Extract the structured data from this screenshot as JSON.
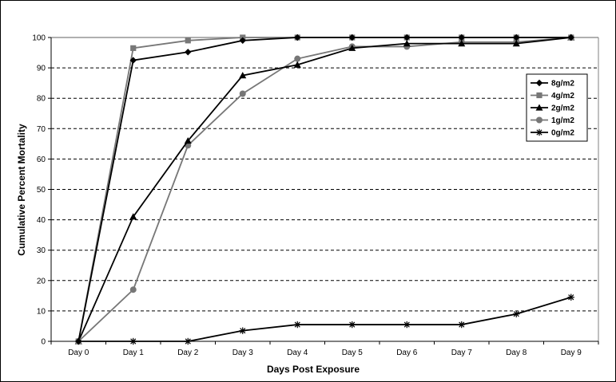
{
  "chart_data": {
    "type": "line",
    "title": "",
    "xlabel": "Days Post Exposure",
    "ylabel": "Cumulative Percent Mortality",
    "categories": [
      "Day 0",
      "Day 1",
      "Day 2",
      "Day 3",
      "Day 4",
      "Day 5",
      "Day 6",
      "Day 7",
      "Day 8",
      "Day 9"
    ],
    "ylim": [
      0,
      100
    ],
    "yticks": [
      0,
      10,
      20,
      30,
      40,
      50,
      60,
      70,
      80,
      90,
      100
    ],
    "grid": "horizontal dashed",
    "legend_position": "right",
    "series": [
      {
        "name": "8g/m2",
        "marker": "diamond",
        "color": "#000000",
        "values": [
          0,
          92.5,
          95.2,
          99,
          100,
          100,
          100,
          100,
          100,
          100
        ]
      },
      {
        "name": "4g/m2",
        "marker": "square",
        "color": "#777777",
        "values": [
          0,
          96.5,
          99,
          100,
          100,
          100,
          100,
          100,
          100,
          100
        ]
      },
      {
        "name": "2g/m2",
        "marker": "triangle",
        "color": "#000000",
        "values": [
          0,
          41,
          66,
          87.5,
          91,
          96.5,
          98,
          98,
          98,
          100
        ]
      },
      {
        "name": "1g/m2",
        "marker": "circle",
        "color": "#777777",
        "values": [
          0,
          17,
          64.5,
          81.5,
          93,
          97,
          97,
          98.5,
          98.5,
          100
        ]
      },
      {
        "name": "0g/m2",
        "marker": "asterisk",
        "color": "#000000",
        "values": [
          0,
          0,
          0,
          3.5,
          5.5,
          5.5,
          5.5,
          5.5,
          9,
          14.5
        ]
      }
    ]
  }
}
